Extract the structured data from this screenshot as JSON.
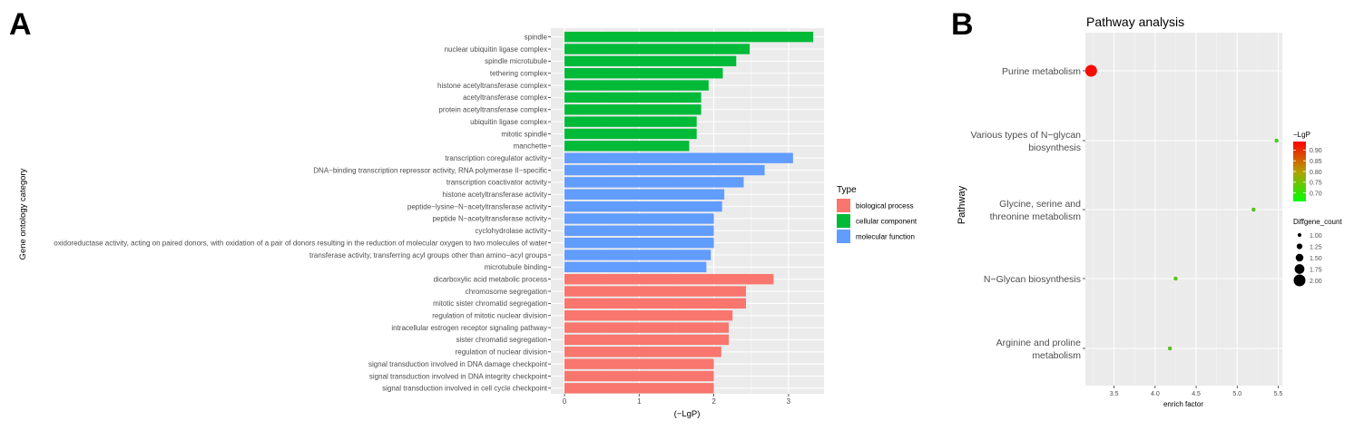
{
  "panel_a_letter": "A",
  "panel_b_letter": "B",
  "chart_data": [
    {
      "type": "bar",
      "orientation": "horizontal",
      "title": "",
      "xlabel": "(−LgP)",
      "ylabel": "Gene ontology category",
      "xlim": [
        0,
        3.5
      ],
      "xticks": [
        0,
        1,
        2,
        3
      ],
      "grid": true,
      "legend": {
        "title": "Type",
        "position": "right",
        "entries": [
          {
            "label": "biological process",
            "color": "#F8766D"
          },
          {
            "label": "cellular component",
            "color": "#00BA38"
          },
          {
            "label": "molecular function",
            "color": "#619CFF"
          }
        ]
      },
      "series": [
        {
          "type": "cellular component",
          "color": "#00BA38",
          "categories": [
            "spindle",
            "nuclear ubiquitin ligase complex",
            "spindle microtubule",
            "tethering complex",
            "histone acetyltransferase complex",
            "acetyltransferase complex",
            "protein acetyltransferase complex",
            "ubiquitin ligase complex",
            "mitotic spindle",
            "manchette"
          ],
          "values": [
            3.33,
            2.48,
            2.3,
            2.12,
            1.93,
            1.83,
            1.83,
            1.77,
            1.77,
            1.67
          ]
        },
        {
          "type": "molecular function",
          "color": "#619CFF",
          "categories": [
            "transcription coregulator activity",
            "DNA−binding transcription repressor activity, RNA polymerase II−specific",
            "transcription coactivator activity",
            "histone acetyltransferase activity",
            "peptide−lysine−N−acetyltransferase activity",
            "peptide N−acetyltransferase activity",
            "cyclohydrolase activity",
            "oxidoreductase activity, acting on paired donors, with oxidation of a pair of donors resulting in the reduction of molecular oxygen to two molecules of water",
            "transferase activity, transferring acyl groups other than amino−acyl groups",
            "microtubule binding"
          ],
          "values": [
            3.06,
            2.68,
            2.4,
            2.14,
            2.11,
            2.0,
            2.0,
            2.0,
            1.96,
            1.9
          ]
        },
        {
          "type": "biological process",
          "color": "#F8766D",
          "categories": [
            "dicarboxylic acid metabolic process",
            "chromosome segregation",
            "mitotic sister chromatid segregation",
            "regulation of mitotic nuclear division",
            "intracellular estrogen receptor signaling pathway",
            "sister chromatid segregation",
            "regulation of nuclear division",
            "signal transduction involved in DNA damage checkpoint",
            "signal transduction involved in DNA integrity checkpoint",
            "signal transduction involved in cell cycle checkpoint"
          ],
          "values": [
            2.8,
            2.43,
            2.43,
            2.25,
            2.2,
            2.2,
            2.1,
            2.0,
            2.0,
            2.0
          ]
        }
      ]
    },
    {
      "type": "scatter",
      "title": "Pathway analysis",
      "xlabel": "enrich factor",
      "ylabel": "Pathway",
      "xlim": [
        3.15,
        5.55
      ],
      "xticks": [
        3.5,
        4.0,
        4.5,
        5.0,
        5.5
      ],
      "xtick_labels": [
        "3.5",
        "4.0",
        "4.5",
        "5.0",
        "5.5"
      ],
      "grid": true,
      "categories": [
        "Purine metabolism",
        "Various types of N−glycan biosynthesis",
        "Glycine, serine and threonine metabolism",
        "N−Glycan biosynthesis",
        "Arginine and proline metabolism"
      ],
      "category_lines": [
        [
          "Purine metabolism"
        ],
        [
          "Various types of N−glycan",
          "biosynthesis"
        ],
        [
          "Glycine, serine and",
          "threonine metabolism"
        ],
        [
          "N−Glycan biosynthesis"
        ],
        [
          "Arginine and proline",
          "metabolism"
        ]
      ],
      "points": [
        {
          "pathway": "Purine metabolism",
          "enrich_factor": 3.22,
          "neg_lgp": 0.93,
          "count": 2
        },
        {
          "pathway": "Various types of N−glycan biosynthesis",
          "enrich_factor": 5.48,
          "neg_lgp": 0.7,
          "count": 1
        },
        {
          "pathway": "Glycine, serine and threonine metabolism",
          "enrich_factor": 5.2,
          "neg_lgp": 0.72,
          "count": 1
        },
        {
          "pathway": "N−Glycan biosynthesis",
          "enrich_factor": 4.25,
          "neg_lgp": 0.72,
          "count": 1
        },
        {
          "pathway": "Arginine and proline metabolism",
          "enrich_factor": 4.18,
          "neg_lgp": 0.72,
          "count": 1
        }
      ],
      "color_legend": {
        "title": "−LgP",
        "position": "right",
        "low_color": "#00FF00",
        "high_color": "#FF0000",
        "range": [
          0.66,
          0.94
        ],
        "ticks": [
          0.9,
          0.85,
          0.8,
          0.75,
          0.7
        ],
        "tick_labels": [
          "0.90",
          "0.85",
          "0.80",
          "0.75",
          "0.70"
        ]
      },
      "size_legend": {
        "title": "Diffgene_count",
        "position": "right",
        "ticks": [
          1.0,
          1.25,
          1.5,
          1.75,
          2.0
        ],
        "tick_labels": [
          "1.00",
          "1.25",
          "1.50",
          "1.75",
          "2.00"
        ]
      }
    }
  ]
}
